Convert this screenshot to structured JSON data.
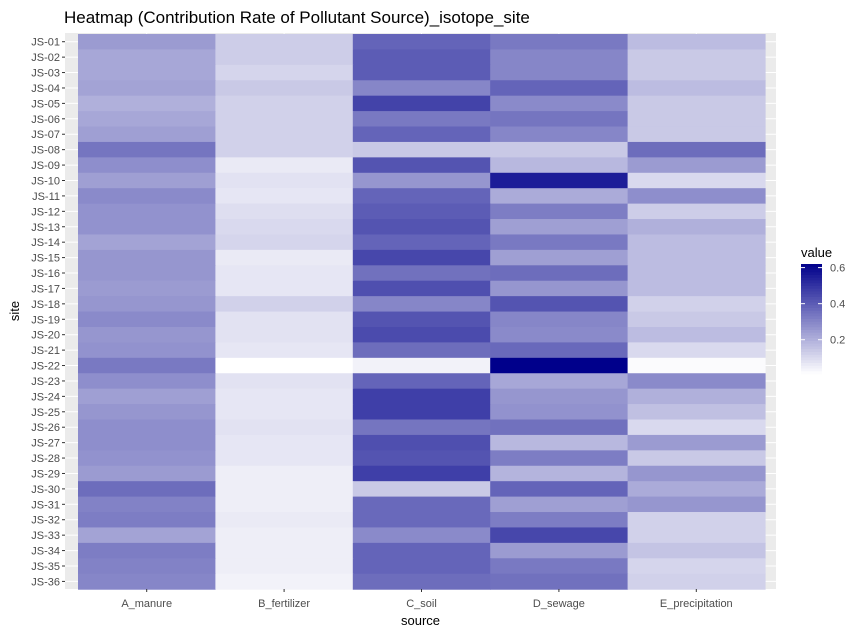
{
  "chart_data": {
    "type": "heatmap",
    "title": "Heatmap (Contribution Rate of Pollutant Source)_isotope_site",
    "xlabel": "source",
    "ylabel": "site",
    "x": [
      "A_manure",
      "B_fertilizer",
      "C_soil",
      "D_sewage",
      "E_precipitation"
    ],
    "y": [
      "JS-01",
      "JS-02",
      "JS-03",
      "JS-04",
      "JS-05",
      "JS-06",
      "JS-07",
      "JS-08",
      "JS-09",
      "JS-10",
      "JS-11",
      "JS-12",
      "JS-13",
      "JS-14",
      "JS-15",
      "JS-16",
      "JS-17",
      "JS-18",
      "JS-19",
      "JS-20",
      "JS-21",
      "JS-22",
      "JS-23",
      "JS-24",
      "JS-25",
      "JS-26",
      "JS-27",
      "JS-28",
      "JS-29",
      "JS-30",
      "JS-31",
      "JS-32",
      "JS-33",
      "JS-34",
      "JS-35",
      "JS-36"
    ],
    "values": [
      [
        0.25,
        0.13,
        0.38,
        0.33,
        0.17
      ],
      [
        0.22,
        0.13,
        0.4,
        0.3,
        0.14
      ],
      [
        0.22,
        0.11,
        0.4,
        0.3,
        0.14
      ],
      [
        0.23,
        0.14,
        0.3,
        0.38,
        0.17
      ],
      [
        0.2,
        0.12,
        0.46,
        0.29,
        0.14
      ],
      [
        0.22,
        0.12,
        0.33,
        0.34,
        0.14
      ],
      [
        0.24,
        0.12,
        0.38,
        0.3,
        0.14
      ],
      [
        0.34,
        0.12,
        0.14,
        0.14,
        0.36
      ],
      [
        0.28,
        0.06,
        0.42,
        0.18,
        0.25
      ],
      [
        0.24,
        0.08,
        0.26,
        0.55,
        0.1
      ],
      [
        0.29,
        0.07,
        0.38,
        0.21,
        0.28
      ],
      [
        0.27,
        0.09,
        0.4,
        0.32,
        0.13
      ],
      [
        0.27,
        0.1,
        0.42,
        0.24,
        0.2
      ],
      [
        0.23,
        0.11,
        0.38,
        0.33,
        0.17
      ],
      [
        0.26,
        0.06,
        0.45,
        0.24,
        0.17
      ],
      [
        0.26,
        0.07,
        0.35,
        0.36,
        0.17
      ],
      [
        0.25,
        0.07,
        0.43,
        0.26,
        0.17
      ],
      [
        0.26,
        0.12,
        0.3,
        0.42,
        0.12
      ],
      [
        0.29,
        0.08,
        0.42,
        0.3,
        0.14
      ],
      [
        0.26,
        0.08,
        0.44,
        0.29,
        0.17
      ],
      [
        0.27,
        0.07,
        0.36,
        0.37,
        0.1
      ],
      [
        0.33,
        0.01,
        0.04,
        0.62,
        0.02
      ],
      [
        0.28,
        0.08,
        0.38,
        0.22,
        0.29
      ],
      [
        0.24,
        0.07,
        0.47,
        0.26,
        0.2
      ],
      [
        0.26,
        0.07,
        0.47,
        0.27,
        0.16
      ],
      [
        0.28,
        0.08,
        0.34,
        0.35,
        0.1
      ],
      [
        0.28,
        0.07,
        0.43,
        0.18,
        0.25
      ],
      [
        0.27,
        0.07,
        0.42,
        0.32,
        0.14
      ],
      [
        0.25,
        0.05,
        0.47,
        0.19,
        0.26
      ],
      [
        0.36,
        0.05,
        0.14,
        0.38,
        0.21
      ],
      [
        0.31,
        0.05,
        0.37,
        0.24,
        0.26
      ],
      [
        0.32,
        0.06,
        0.37,
        0.32,
        0.12
      ],
      [
        0.23,
        0.05,
        0.29,
        0.45,
        0.12
      ],
      [
        0.32,
        0.05,
        0.38,
        0.25,
        0.15
      ],
      [
        0.31,
        0.05,
        0.38,
        0.33,
        0.11
      ],
      [
        0.3,
        0.04,
        0.36,
        0.35,
        0.12
      ]
    ],
    "color_scale": {
      "low": "#ffffff",
      "high": "#00008b",
      "range": [
        0.01,
        0.62
      ]
    },
    "legend": {
      "title": "value",
      "ticks": [
        0.2,
        0.4,
        0.6
      ],
      "ticklabels": [
        "0.2",
        "0.4",
        "0.6"
      ],
      "position": "right"
    },
    "grid": true,
    "panel_background": "#ebebeb"
  }
}
